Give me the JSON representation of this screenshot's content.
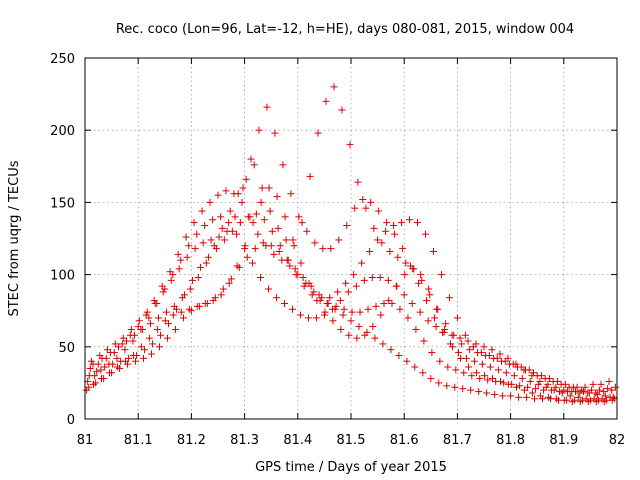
{
  "chart_data": {
    "type": "scatter",
    "title": "Rec. coco (Lon=96, Lat=-12, h=HE), days 080-081, 2015, window 004",
    "xlabel": "GPS time / Days of year 2015",
    "ylabel": "STEC from uqrg / TECUs",
    "xlim": [
      81,
      82
    ],
    "ylim": [
      0,
      250
    ],
    "x_ticks": [
      "81",
      "81.1",
      "81.2",
      "81.3",
      "81.4",
      "81.5",
      "81.6",
      "81.7",
      "81.8",
      "81.9",
      "82"
    ],
    "y_ticks": [
      "0",
      "50",
      "100",
      "150",
      "200",
      "250"
    ],
    "grid": true,
    "marker": "plus",
    "color": "#dd0000",
    "series": [
      {
        "x": [
          81.007,
          81.02,
          81.035,
          81.05,
          81.065,
          81.08,
          81.095,
          81.11,
          81.125,
          81.14,
          81.155,
          81.17,
          81.185,
          81.2,
          81.215,
          81.23,
          81.245,
          81.26,
          81.275,
          81.29,
          81.305,
          81.32,
          81.335,
          81.35,
          81.365,
          81.38,
          81.395,
          81.41,
          81.425,
          81.44,
          81.455,
          81.47,
          81.485,
          81.5,
          81.515,
          81.53,
          81.545,
          81.56,
          81.575,
          81.59,
          81.605,
          81.62,
          81.635,
          81.65,
          81.665,
          81.68,
          81.695,
          81.71,
          81.725,
          81.74,
          81.755,
          81.77,
          81.785,
          81.8,
          81.815,
          81.83,
          81.845,
          81.86,
          81.875,
          81.89,
          81.905,
          81.92,
          81.935,
          81.95,
          81.965,
          81.98,
          81.995
        ],
        "y": [
          22,
          25,
          28,
          32,
          35,
          38,
          40,
          42,
          45,
          50,
          56,
          62,
          70,
          75,
          78,
          80,
          84,
          90,
          97,
          105,
          112,
          118,
          122,
          120,
          116,
          110,
          104,
          98,
          92,
          86,
          80,
          76,
          72,
          68,
          64,
          60,
          56,
          52,
          48,
          44,
          40,
          36,
          32,
          28,
          25,
          23,
          22,
          21,
          20,
          19,
          18,
          17,
          16,
          16,
          15,
          15,
          14,
          14,
          14,
          13,
          13,
          13,
          13,
          13,
          13,
          13,
          14
        ]
      },
      {
        "x": [
          81.008,
          81.022,
          81.037,
          81.052,
          81.067,
          81.082,
          81.097,
          81.112,
          81.127,
          81.142,
          81.157,
          81.172,
          81.187,
          81.202,
          81.217,
          81.232,
          81.247,
          81.262,
          81.277,
          81.292,
          81.307,
          81.322,
          81.337,
          81.352,
          81.367,
          81.382,
          81.397,
          81.412,
          81.427,
          81.442,
          81.457,
          81.472,
          81.487,
          81.502,
          81.517,
          81.532,
          81.547,
          81.562,
          81.577,
          81.592,
          81.607,
          81.622,
          81.637,
          81.652,
          81.667,
          81.682,
          81.697,
          81.712,
          81.727,
          81.742,
          81.757,
          81.772,
          81.787,
          81.802,
          81.817,
          81.832,
          81.847,
          81.862,
          81.877,
          81.892,
          81.907,
          81.922,
          81.937,
          81.952,
          81.967,
          81.982,
          81.997
        ],
        "y": [
          30,
          33,
          36,
          38,
          40,
          42,
          44,
          48,
          52,
          58,
          66,
          76,
          86,
          96,
          105,
          112,
          118,
          124,
          130,
          136,
          140,
          142,
          138,
          130,
          120,
          110,
          100,
          92,
          86,
          82,
          80,
          78,
          76,
          74,
          74,
          76,
          78,
          80,
          80,
          76,
          70,
          62,
          54,
          46,
          40,
          36,
          34,
          32,
          30,
          28,
          27,
          26,
          25,
          24,
          23,
          22,
          21,
          20,
          20,
          19,
          19,
          19,
          19,
          20,
          20,
          21,
          22
        ]
      },
      {
        "x": [
          81.01,
          81.025,
          81.04,
          81.055,
          81.07,
          81.085,
          81.1,
          81.115,
          81.13,
          81.145,
          81.16,
          81.175,
          81.19,
          81.205,
          81.22,
          81.235,
          81.25,
          81.265,
          81.28,
          81.295,
          81.31,
          81.325,
          81.34,
          81.355,
          81.37,
          81.385,
          81.4,
          81.415,
          81.43,
          81.445,
          81.46,
          81.475,
          81.49,
          81.505,
          81.52,
          81.535,
          81.55,
          81.565,
          81.58,
          81.595,
          81.61,
          81.625,
          81.64,
          81.655,
          81.67,
          81.685,
          81.7,
          81.715,
          81.73,
          81.745,
          81.76,
          81.775,
          81.79,
          81.805,
          81.82,
          81.835,
          81.85,
          81.865,
          81.88,
          81.895,
          81.91,
          81.925,
          81.94,
          81.955,
          81.97,
          81.985
        ],
        "y": [
          35,
          38,
          42,
          46,
          52,
          58,
          64,
          72,
          82,
          92,
          102,
          114,
          126,
          136,
          144,
          150,
          155,
          158,
          156,
          150,
          140,
          128,
          120,
          114,
          110,
          106,
          100,
          94,
          88,
          84,
          84,
          88,
          94,
          100,
          108,
          116,
          124,
          130,
          134,
          136,
          138,
          136,
          128,
          116,
          100,
          84,
          70,
          58,
          50,
          46,
          44,
          42,
          40,
          38,
          36,
          34,
          30,
          28,
          26,
          24,
          22,
          22,
          22,
          24,
          24,
          26
        ]
      },
      {
        "x": [
          81.005,
          81.018,
          81.03,
          81.045,
          81.06,
          81.075,
          81.09,
          81.105,
          81.12,
          81.135,
          81.15,
          81.165,
          81.18,
          81.195,
          81.21,
          81.225,
          81.24,
          81.255,
          81.27,
          81.285,
          81.3,
          81.315,
          81.33,
          81.345,
          81.36,
          81.375,
          81.39,
          81.405,
          81.42,
          81.435,
          81.45,
          81.465,
          81.48,
          81.495,
          81.51,
          81.525,
          81.54,
          81.555,
          81.57,
          81.585,
          81.6,
          81.615,
          81.63,
          81.645,
          81.66,
          81.675,
          81.69,
          81.705,
          81.72,
          81.735,
          81.75,
          81.765,
          81.78,
          81.795,
          81.81,
          81.825,
          81.84,
          81.855,
          81.87,
          81.885,
          81.9,
          81.915,
          81.93,
          81.945,
          81.96,
          81.975,
          81.99
        ],
        "y": [
          26,
          30,
          34,
          38,
          42,
          48,
          54,
          62,
          70,
          80,
          90,
          100,
          110,
          120,
          128,
          134,
          138,
          140,
          136,
          128,
          118,
          108,
          98,
          90,
          84,
          80,
          76,
          72,
          70,
          70,
          72,
          76,
          82,
          88,
          92,
          96,
          98,
          98,
          96,
          92,
          86,
          80,
          74,
          68,
          64,
          60,
          58,
          56,
          54,
          52,
          50,
          48,
          45,
          42,
          38,
          34,
          30,
          26,
          24,
          22,
          20,
          19,
          18,
          18,
          18,
          19,
          20
        ]
      },
      {
        "x": [
          81.012,
          81.028,
          81.042,
          81.057,
          81.072,
          81.087,
          81.102,
          81.117,
          81.132,
          81.147,
          81.162,
          81.177,
          81.192,
          81.207,
          81.222,
          81.237,
          81.252,
          81.267,
          81.282,
          81.297,
          81.312,
          81.327,
          81.342,
          81.357,
          81.372,
          81.387,
          81.402,
          81.417,
          81.432,
          81.447,
          81.462,
          81.477,
          81.492,
          81.507,
          81.522,
          81.537,
          81.552,
          81.567,
          81.582,
          81.597,
          81.612,
          81.627,
          81.642,
          81.657,
          81.672,
          81.687,
          81.702,
          81.717,
          81.732,
          81.747,
          81.762,
          81.777,
          81.792,
          81.807,
          81.822,
          81.837,
          81.852,
          81.867,
          81.882,
          81.897,
          81.912,
          81.927,
          81.942,
          81.957,
          81.972,
          81.987
        ],
        "y": [
          40,
          44,
          48,
          52,
          56,
          62,
          68,
          74,
          80,
          88,
          96,
          104,
          112,
          118,
          122,
          124,
          126,
          130,
          140,
          160,
          180,
          200,
          216,
          198,
          176,
          156,
          140,
          130,
          122,
          118,
          118,
          124,
          134,
          146,
          152,
          150,
          144,
          136,
          128,
          118,
          106,
          94,
          82,
          70,
          60,
          52,
          46,
          42,
          40,
          38,
          36,
          34,
          32,
          30,
          28,
          26,
          24,
          22,
          20,
          18,
          16,
          15,
          14,
          14,
          14,
          15
        ]
      },
      {
        "x": [
          81.015,
          81.032,
          81.048,
          81.063,
          81.078,
          81.093,
          81.108,
          81.123,
          81.138,
          81.153,
          81.168,
          81.183,
          81.198,
          81.213,
          81.228,
          81.243,
          81.258,
          81.273,
          81.288,
          81.303,
          81.318,
          81.333,
          81.348,
          81.363,
          81.378,
          81.393,
          81.408,
          81.423,
          81.438,
          81.453,
          81.468,
          81.483,
          81.498,
          81.513,
          81.528,
          81.543,
          81.558,
          81.573,
          81.588,
          81.603,
          81.618,
          81.633,
          81.648,
          81.663,
          81.678,
          81.693,
          81.708,
          81.723,
          81.738,
          81.753,
          81.768,
          81.783,
          81.798,
          81.813,
          81.828,
          81.843,
          81.858,
          81.873,
          81.888,
          81.903,
          81.918,
          81.933,
          81.948,
          81.963,
          81.978,
          81.993
        ],
        "y": [
          38,
          42,
          46,
          50,
          54,
          58,
          62,
          66,
          70,
          74,
          78,
          84,
          90,
          98,
          108,
          120,
          132,
          144,
          156,
          166,
          176,
          160,
          144,
          132,
          124,
          120,
          136,
          168,
          198,
          220,
          230,
          214,
          190,
          164,
          146,
          132,
          122,
          116,
          112,
          108,
          104,
          96,
          86,
          76,
          66,
          58,
          52,
          48,
          46,
          44,
          42,
          40,
          38,
          36,
          34,
          32,
          30,
          28,
          26,
          24,
          22,
          20,
          18,
          17,
          16,
          15
        ]
      },
      {
        "x": [
          81.003,
          81.016,
          81.031,
          81.046,
          81.061,
          81.076,
          81.091,
          81.106,
          81.121,
          81.136,
          81.151,
          81.166,
          81.181,
          81.196,
          81.211,
          81.226,
          81.241,
          81.256,
          81.271,
          81.286,
          81.301,
          81.316,
          81.331,
          81.346,
          81.361,
          81.376,
          81.391,
          81.406,
          81.421,
          81.436,
          81.451,
          81.466,
          81.481,
          81.496,
          81.511,
          81.526,
          81.541,
          81.556,
          81.571,
          81.586,
          81.601,
          81.616,
          81.631,
          81.646,
          81.661,
          81.676,
          81.691,
          81.706,
          81.721,
          81.736,
          81.751,
          81.766,
          81.781,
          81.796,
          81.811,
          81.826,
          81.841,
          81.856,
          81.871,
          81.886,
          81.901,
          81.916,
          81.931,
          81.946,
          81.961,
          81.976,
          81.991
        ],
        "y": [
          20,
          24,
          28,
          32,
          36,
          40,
          44,
          50,
          56,
          62,
          68,
          72,
          74,
          76,
          78,
          80,
          82,
          86,
          94,
          106,
          120,
          136,
          150,
          160,
          154,
          140,
          124,
          108,
          94,
          82,
          74,
          68,
          62,
          58,
          56,
          58,
          64,
          72,
          82,
          92,
          100,
          104,
          100,
          90,
          76,
          62,
          50,
          42,
          36,
          32,
          30,
          28,
          26,
          24,
          22,
          20,
          18,
          16,
          15,
          14,
          13,
          12,
          12,
          12,
          12,
          12,
          13
        ]
      }
    ]
  }
}
